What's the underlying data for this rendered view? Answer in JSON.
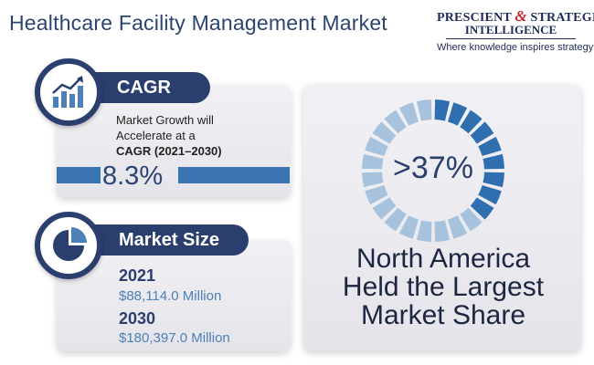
{
  "title": "Healthcare Facility Management Market",
  "logo": {
    "line1_a": "PRESCIENT",
    "line1_amp": "&",
    "line1_b": "STRATEGIC",
    "line2": "INTELLIGENCE",
    "tagline": "Where knowledge inspires strategy"
  },
  "cagr": {
    "label": "CAGR",
    "desc_line1": "Market Growth will",
    "desc_line2": "Accelerate at a",
    "desc_line3": "CAGR (2021–2030)",
    "value": "8.3%",
    "icon": "bar-chart-growth-icon"
  },
  "market_size": {
    "label": "Market Size",
    "icon": "pie-chart-icon",
    "rows": [
      {
        "year": "2021",
        "amount": "$88,114.0 Million"
      },
      {
        "year": "2030",
        "amount": "$180,397.0 Million"
      }
    ]
  },
  "share": {
    "value_text": ">37%",
    "fraction": 0.37,
    "segments": 24,
    "line1": "North America",
    "line2": "Held the Largest",
    "line3": "Market Share"
  },
  "colors": {
    "navy": "#2b3f6e",
    "blue": "#2f6fb0",
    "light_blue": "#a6c2dd",
    "panel": "#e9e9ee",
    "brand_red": "#c0282d"
  }
}
